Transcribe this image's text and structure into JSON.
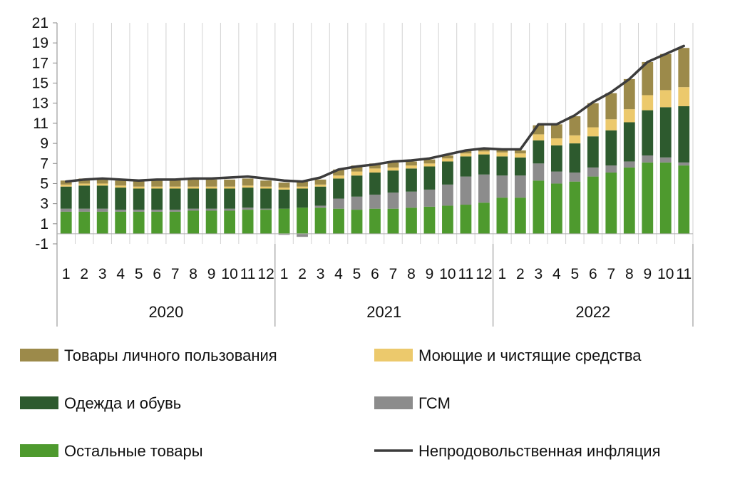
{
  "chart_data": {
    "type": "bar",
    "stacked": true,
    "y_ticks": [
      "21",
      "19",
      "17",
      "15",
      "13",
      "11",
      "9",
      "7",
      "5",
      "3",
      "1",
      "-1"
    ],
    "ylim": [
      -1,
      21
    ],
    "grid": "vertical",
    "legend_position": "bottom",
    "months": [
      "1",
      "2",
      "3",
      "4",
      "5",
      "6",
      "7",
      "8",
      "9",
      "10",
      "11",
      "12",
      "1",
      "2",
      "3",
      "4",
      "5",
      "6",
      "7",
      "8",
      "9",
      "10",
      "11",
      "12",
      "1",
      "2",
      "3",
      "4",
      "5",
      "6",
      "7",
      "8",
      "9",
      "10",
      "11"
    ],
    "years": [
      {
        "label": "2020",
        "count": 12
      },
      {
        "label": "2021",
        "count": 12
      },
      {
        "label": "2022",
        "count": 11
      }
    ],
    "series": [
      {
        "name": "Остальные товары",
        "color": "#4e9a2e",
        "values": [
          2.2,
          2.2,
          2.2,
          2.2,
          2.2,
          2.2,
          2.2,
          2.3,
          2.3,
          2.3,
          2.4,
          2.4,
          2.5,
          2.6,
          2.6,
          2.5,
          2.4,
          2.5,
          2.5,
          2.6,
          2.7,
          2.8,
          2.9,
          3.1,
          3.6,
          3.6,
          5.3,
          5.0,
          5.2,
          5.7,
          6.1,
          6.6,
          7.1,
          7.1,
          6.8
        ]
      },
      {
        "name": "ГСМ",
        "color": "#8c8c8c",
        "values": [
          0.3,
          0.3,
          0.3,
          0.2,
          0.2,
          0.2,
          0.2,
          0.2,
          0.2,
          0.2,
          0.2,
          0.1,
          -0.1,
          -0.3,
          0.2,
          1.0,
          1.3,
          1.4,
          1.6,
          1.6,
          1.7,
          2.1,
          2.8,
          2.8,
          2.2,
          2.2,
          1.7,
          1.2,
          0.9,
          0.9,
          0.7,
          0.6,
          0.7,
          0.5,
          0.3
        ]
      },
      {
        "name": "Одежда и обувь",
        "color": "#2d5a2e",
        "values": [
          2.2,
          2.3,
          2.3,
          2.2,
          2.1,
          2.1,
          2.1,
          2.0,
          2.0,
          2.0,
          2.0,
          2.0,
          1.9,
          1.9,
          1.9,
          2.0,
          2.1,
          2.2,
          2.2,
          2.3,
          2.3,
          2.3,
          2.0,
          2.0,
          1.9,
          1.8,
          2.3,
          2.6,
          2.9,
          3.1,
          3.5,
          3.9,
          4.5,
          5.0,
          5.6
        ]
      },
      {
        "name": "Моющие и чистящие средства",
        "color": "#ecc96c",
        "values": [
          0.2,
          0.2,
          0.2,
          0.2,
          0.2,
          0.2,
          0.2,
          0.2,
          0.2,
          0.2,
          0.2,
          0.2,
          0.2,
          0.2,
          0.2,
          0.3,
          0.4,
          0.4,
          0.3,
          0.3,
          0.3,
          0.3,
          0.3,
          0.3,
          0.4,
          0.4,
          0.6,
          0.7,
          0.8,
          0.9,
          1.1,
          1.3,
          1.5,
          1.7,
          1.9
        ]
      },
      {
        "name": "Товары личного пользования",
        "color": "#9c8a4a",
        "values": [
          0.4,
          0.5,
          0.5,
          0.5,
          0.6,
          0.7,
          0.7,
          0.7,
          0.7,
          0.7,
          0.7,
          0.6,
          0.5,
          0.5,
          0.5,
          0.6,
          0.6,
          0.5,
          0.5,
          0.4,
          0.4,
          0.3,
          0.3,
          0.3,
          0.3,
          0.3,
          0.9,
          1.4,
          1.9,
          2.4,
          2.6,
          3.0,
          3.3,
          3.6,
          3.9
        ]
      }
    ],
    "line": {
      "name": "Непродовольственная инфляция",
      "color": "#3c3c3c",
      "values": [
        5.2,
        5.4,
        5.5,
        5.4,
        5.3,
        5.4,
        5.4,
        5.5,
        5.5,
        5.6,
        5.7,
        5.5,
        5.3,
        5.2,
        5.6,
        6.4,
        6.7,
        6.9,
        7.2,
        7.3,
        7.5,
        7.9,
        8.3,
        8.5,
        8.4,
        8.4,
        10.9,
        10.9,
        11.8,
        13.1,
        14.1,
        15.4,
        17.1,
        17.9,
        18.7
      ]
    }
  }
}
